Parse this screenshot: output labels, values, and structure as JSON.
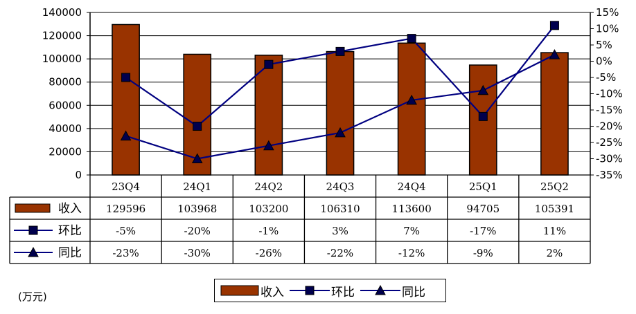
{
  "chart_data": {
    "type": "bar",
    "categories": [
      "23Q4",
      "24Q1",
      "24Q2",
      "24Q3",
      "24Q4",
      "25Q1",
      "25Q2"
    ],
    "series": [
      {
        "name": "收入",
        "type": "bar",
        "axis": "left",
        "color": "#993300",
        "values": [
          129596,
          103968,
          103200,
          106310,
          113600,
          94705,
          105391
        ],
        "labels": [
          "129596",
          "103968",
          "103200",
          "106310",
          "113600",
          "94705",
          "105391"
        ]
      },
      {
        "name": "环比",
        "type": "line",
        "axis": "right",
        "marker": "square",
        "color": "#000080",
        "values": [
          -5,
          -20,
          -1,
          3,
          7,
          -17,
          11
        ],
        "labels": [
          "-5%",
          "-20%",
          "-1%",
          "3%",
          "7%",
          "-17%",
          "11%"
        ]
      },
      {
        "name": "同比",
        "type": "line",
        "axis": "right",
        "marker": "triangle",
        "color": "#000080",
        "values": [
          -23,
          -30,
          -26,
          -22,
          -12,
          -9,
          2
        ],
        "labels": [
          "-23%",
          "-30%",
          "-26%",
          "-22%",
          "-12%",
          "-9%",
          "2%"
        ]
      }
    ],
    "y_left": {
      "range": [
        0,
        140000
      ],
      "ticks": [
        "0",
        "20000",
        "40000",
        "60000",
        "80000",
        "100000",
        "120000",
        "140000"
      ]
    },
    "y_right": {
      "range": [
        -35,
        15
      ],
      "ticks": [
        "15%",
        "10%",
        "5%",
        "0%",
        "-5%",
        "-10%",
        "-15%",
        "-20%",
        "-25%",
        "-30%",
        "-35%"
      ]
    },
    "grid": true,
    "data_table": true,
    "legend": "bottom-center"
  },
  "unit_label": "(万元)",
  "colors": {
    "bar": "#993300",
    "line": "#000080",
    "marker": "#00004d"
  }
}
